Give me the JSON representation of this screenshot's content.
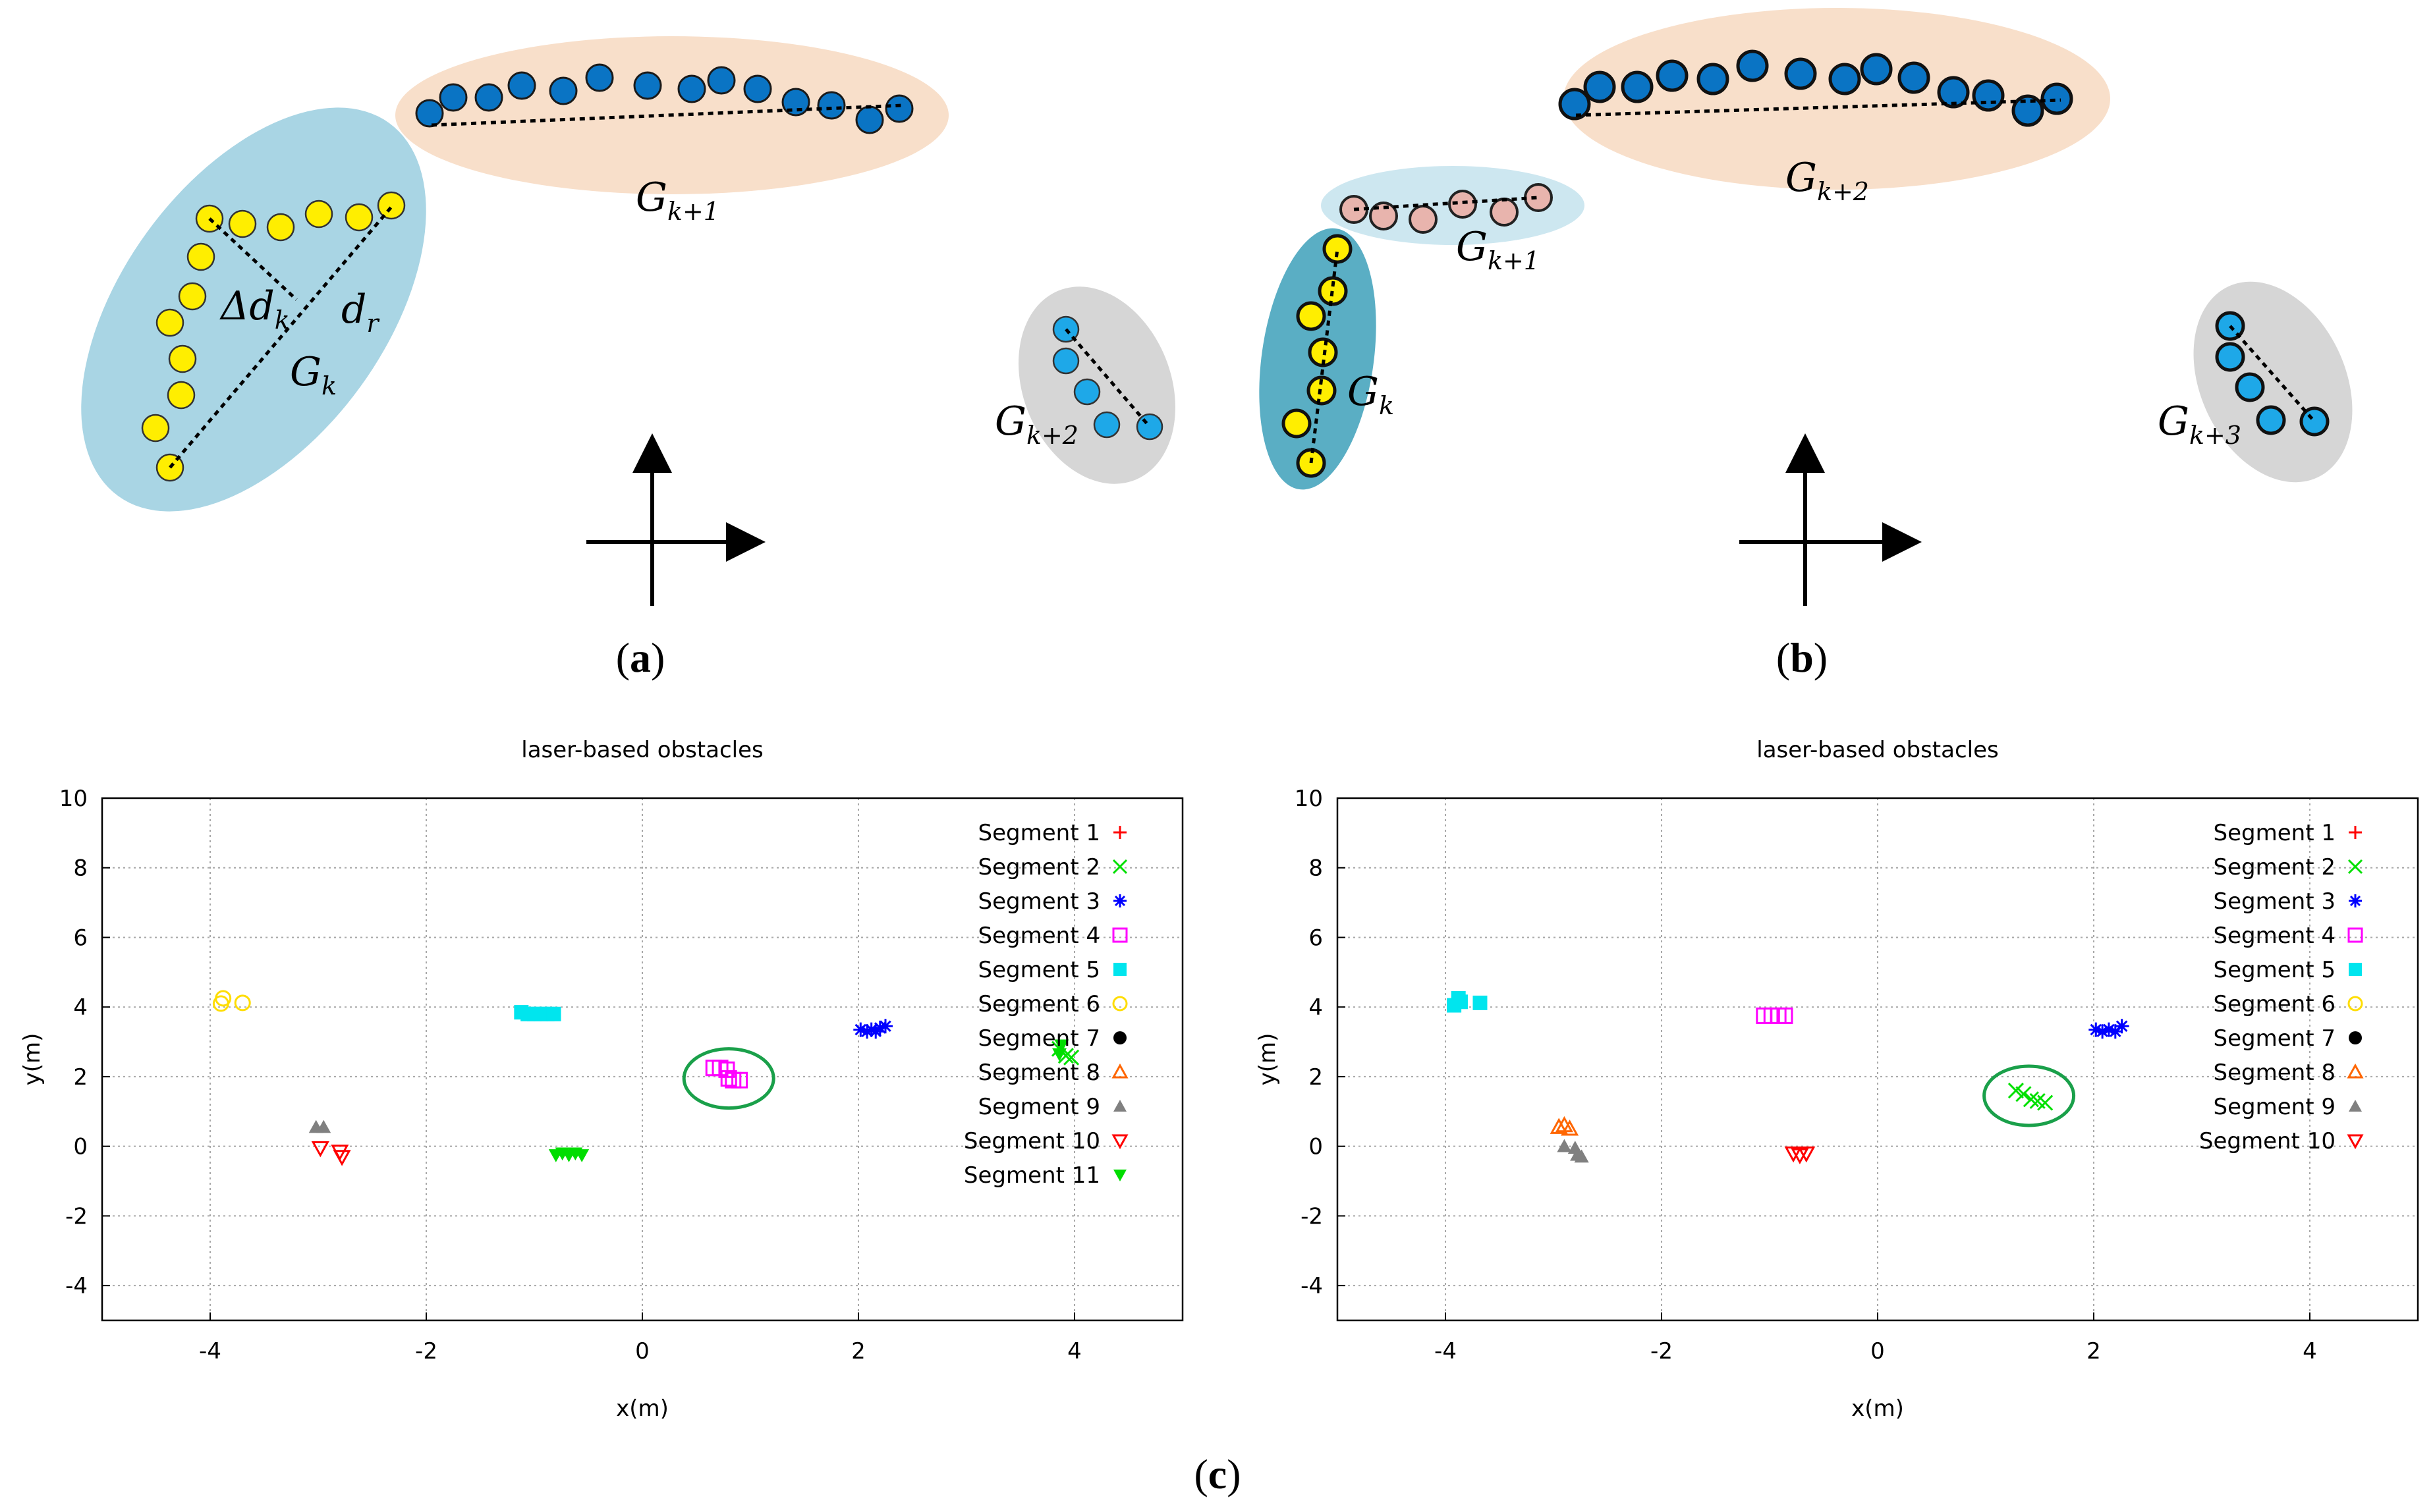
{
  "figure": {
    "panel_labels": {
      "a": {
        "open": "(",
        "letter": "a",
        "close": ")"
      },
      "b": {
        "open": "(",
        "letter": "b",
        "close": ")"
      },
      "c": {
        "open": "(",
        "letter": "c",
        "close": ")"
      }
    }
  },
  "diagram_a": {
    "group_labels": [
      {
        "id": "gk1",
        "base": "G",
        "sub": "k+1"
      },
      {
        "id": "gk",
        "base": "G",
        "sub": "k"
      },
      {
        "id": "gk2",
        "base": "G",
        "sub": "k+2"
      }
    ],
    "distance_labels": [
      {
        "id": "delta-dk",
        "base": "Δd",
        "sub": "k"
      },
      {
        "id": "dr",
        "base": "d",
        "sub": "r"
      }
    ],
    "colors": {
      "yellow": "#ffee00",
      "blue": "#0a74c4",
      "cyan": "#1ea8e8",
      "peach": "#f8dfca",
      "lightblue": "#a9d5e4",
      "gray": "#d6d6d6"
    }
  },
  "diagram_b": {
    "group_labels": [
      {
        "id": "gk2",
        "base": "G",
        "sub": "k+2"
      },
      {
        "id": "gk1",
        "base": "G",
        "sub": "k+1"
      },
      {
        "id": "gk",
        "base": "G",
        "sub": "k"
      },
      {
        "id": "gk3",
        "base": "G",
        "sub": "k+3"
      }
    ],
    "colors": {
      "pink": "#e8b4ad",
      "teal": "#5aaec4",
      "lightblue": "#cde7f0"
    }
  },
  "chart_data": [
    {
      "type": "scatter",
      "title": "laser-based obstacles",
      "xlabel": "x(m)",
      "ylabel": "y(m)",
      "xlim": [
        -5,
        5
      ],
      "ylim": [
        -5,
        10
      ],
      "xticks": [
        -4,
        -2,
        0,
        2,
        4
      ],
      "yticks": [
        10,
        8,
        6,
        4,
        2,
        0,
        -2,
        -4
      ],
      "grid": true,
      "legend_position": "top-right",
      "highlight": {
        "shape": "ellipse",
        "center": [
          0.8,
          1.95
        ],
        "color": "#1aa04a"
      },
      "series": [
        {
          "name": "Segment 1",
          "marker": "plus",
          "color": "#ff0000",
          "points": []
        },
        {
          "name": "Segment 2",
          "marker": "x",
          "color": "#00e000",
          "points": [
            [
              3.86,
              2.8
            ],
            [
              3.92,
              2.6
            ],
            [
              3.97,
              2.55
            ]
          ]
        },
        {
          "name": "Segment 3",
          "marker": "star",
          "color": "#0000ff",
          "points": [
            [
              2.02,
              3.35
            ],
            [
              2.08,
              3.3
            ],
            [
              2.12,
              3.35
            ],
            [
              2.16,
              3.3
            ],
            [
              2.2,
              3.4
            ],
            [
              2.25,
              3.45
            ]
          ]
        },
        {
          "name": "Segment 4",
          "marker": "square-open",
          "color": "#ff00ff",
          "points": [
            [
              0.66,
              2.25
            ],
            [
              0.72,
              2.25
            ],
            [
              0.78,
              2.2
            ],
            [
              0.8,
              1.95
            ],
            [
              0.84,
              1.9
            ],
            [
              0.9,
              1.9
            ]
          ]
        },
        {
          "name": "Segment 5",
          "marker": "square-filled",
          "color": "#00e5ee",
          "points": [
            [
              -1.12,
              3.85
            ],
            [
              -1.06,
              3.8
            ],
            [
              -1.0,
              3.8
            ],
            [
              -0.94,
              3.8
            ],
            [
              -0.88,
              3.8
            ],
            [
              -0.82,
              3.8
            ]
          ]
        },
        {
          "name": "Segment 6",
          "marker": "circle-open",
          "color": "#ffdd00",
          "points": [
            [
              -3.9,
              4.1
            ],
            [
              -3.88,
              4.25
            ],
            [
              -3.7,
              4.12
            ]
          ]
        },
        {
          "name": "Segment 7",
          "marker": "circle-filled",
          "color": "#000000",
          "points": []
        },
        {
          "name": "Segment 8",
          "marker": "triangle-open",
          "color": "#ff6600",
          "points": []
        },
        {
          "name": "Segment 9",
          "marker": "triangle-filled",
          "color": "#808080",
          "points": [
            [
              -3.02,
              0.55
            ],
            [
              -2.95,
              0.55
            ]
          ]
        },
        {
          "name": "Segment 10",
          "marker": "triangle-down-open",
          "color": "#ff0000",
          "points": [
            [
              -2.98,
              -0.05
            ],
            [
              -2.8,
              -0.15
            ],
            [
              -2.78,
              -0.3
            ]
          ]
        },
        {
          "name": "Segment 11",
          "marker": "triangle-down-filled",
          "color": "#00dd00",
          "points": [
            [
              -0.8,
              -0.25
            ],
            [
              -0.74,
              -0.2
            ],
            [
              -0.68,
              -0.25
            ],
            [
              -0.62,
              -0.2
            ],
            [
              -0.56,
              -0.25
            ],
            [
              3.88,
              2.9
            ],
            [
              3.86,
              2.65
            ]
          ]
        }
      ]
    },
    {
      "type": "scatter",
      "title": "laser-based obstacles",
      "xlabel": "x(m)",
      "ylabel": "y(m)",
      "xlim": [
        -5,
        5
      ],
      "ylim": [
        -5,
        10
      ],
      "xticks": [
        -4,
        -2,
        0,
        2,
        4
      ],
      "yticks": [
        10,
        8,
        6,
        4,
        2,
        0,
        -2,
        -4
      ],
      "grid": true,
      "legend_position": "top-right",
      "highlight": {
        "shape": "ellipse",
        "center": [
          1.4,
          1.45
        ],
        "color": "#1aa04a"
      },
      "series": [
        {
          "name": "Segment 1",
          "marker": "plus",
          "color": "#ff0000",
          "points": []
        },
        {
          "name": "Segment 2",
          "marker": "x",
          "color": "#00e000",
          "points": [
            [
              1.28,
              1.6
            ],
            [
              1.35,
              1.5
            ],
            [
              1.42,
              1.35
            ],
            [
              1.48,
              1.3
            ],
            [
              1.55,
              1.25
            ]
          ]
        },
        {
          "name": "Segment 3",
          "marker": "star",
          "color": "#0000ff",
          "points": [
            [
              2.02,
              3.35
            ],
            [
              2.08,
              3.3
            ],
            [
              2.14,
              3.35
            ],
            [
              2.2,
              3.3
            ],
            [
              2.26,
              3.45
            ]
          ]
        },
        {
          "name": "Segment 4",
          "marker": "square-open",
          "color": "#ff00ff",
          "points": [
            [
              -1.05,
              3.75
            ],
            [
              -0.98,
              3.75
            ],
            [
              -0.92,
              3.75
            ],
            [
              -0.86,
              3.75
            ]
          ]
        },
        {
          "name": "Segment 5",
          "marker": "square-filled",
          "color": "#00e5ee",
          "points": [
            [
              -3.92,
              4.05
            ],
            [
              -3.88,
              4.25
            ],
            [
              -3.86,
              4.15
            ],
            [
              -3.68,
              4.12
            ]
          ]
        },
        {
          "name": "Segment 6",
          "marker": "circle-open",
          "color": "#ffdd00",
          "points": []
        },
        {
          "name": "Segment 7",
          "marker": "circle-filled",
          "color": "#000000",
          "points": []
        },
        {
          "name": "Segment 8",
          "marker": "triangle-open",
          "color": "#ff6600",
          "points": [
            [
              -2.95,
              0.55
            ],
            [
              -2.9,
              0.6
            ],
            [
              -2.85,
              0.5
            ]
          ]
        },
        {
          "name": "Segment 9",
          "marker": "triangle-filled",
          "color": "#808080",
          "points": [
            [
              -2.9,
              0.0
            ],
            [
              -2.8,
              -0.05
            ],
            [
              -2.78,
              -0.25
            ],
            [
              -2.74,
              -0.3
            ]
          ]
        },
        {
          "name": "Segment 10",
          "marker": "triangle-down-open",
          "color": "#ff0000",
          "points": [
            [
              -0.78,
              -0.2
            ],
            [
              -0.72,
              -0.25
            ],
            [
              -0.66,
              -0.2
            ]
          ]
        }
      ]
    }
  ]
}
